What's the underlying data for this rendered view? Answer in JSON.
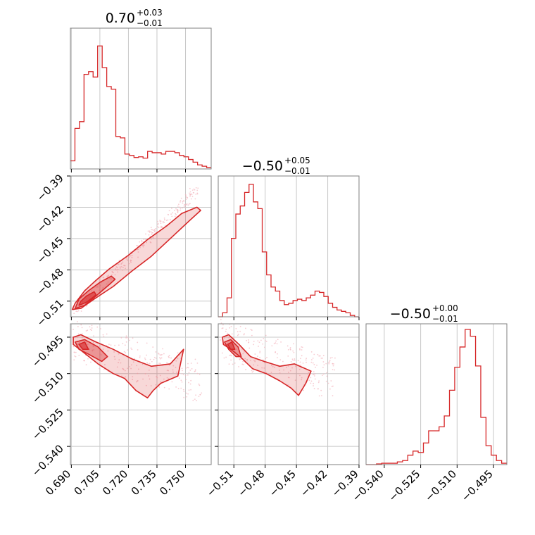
{
  "chart_data": {
    "type": "corner",
    "color": "#d62728",
    "grid": true,
    "panels": [
      {
        "id": "hist-p0",
        "type": "step-histogram",
        "title": {
          "value": "0.70",
          "plus": "+0.03",
          "minus": "−0.01"
        },
        "xlim": [
          0.6895,
          0.7635
        ],
        "counts": [
          0.06,
          0.3,
          0.35,
          0.7,
          0.72,
          0.68,
          0.91,
          0.75,
          0.61,
          0.59,
          0.24,
          0.23,
          0.11,
          0.1,
          0.085,
          0.09,
          0.08,
          0.13,
          0.12,
          0.12,
          0.11,
          0.13,
          0.13,
          0.12,
          0.1,
          0.09,
          0.07,
          0.05,
          0.03,
          0.02,
          0.01
        ]
      },
      {
        "id": "hist-p1",
        "type": "step-histogram",
        "title": {
          "value": "−0.50",
          "plus": "+0.05",
          "minus": "−0.01"
        },
        "xlim": [
          -0.525,
          -0.39
        ],
        "counts": [
          0.0,
          0.03,
          0.14,
          0.58,
          0.76,
          0.82,
          0.92,
          0.98,
          0.85,
          0.8,
          0.48,
          0.31,
          0.22,
          0.19,
          0.12,
          0.09,
          0.1,
          0.12,
          0.13,
          0.12,
          0.14,
          0.16,
          0.19,
          0.18,
          0.15,
          0.1,
          0.07,
          0.05,
          0.04,
          0.03,
          0.01,
          0.0
        ]
      },
      {
        "id": "hist-p2",
        "type": "step-histogram",
        "title": {
          "value": "−0.50",
          "plus": "+0.00",
          "minus": "−0.01"
        },
        "xlim": [
          -0.5475,
          -0.4895
        ],
        "counts": [
          0.0,
          0.0,
          0.005,
          0.01,
          0.01,
          0.01,
          0.02,
          0.03,
          0.07,
          0.1,
          0.09,
          0.16,
          0.25,
          0.25,
          0.28,
          0.36,
          0.55,
          0.72,
          0.87,
          1.0,
          0.95,
          0.73,
          0.35,
          0.14,
          0.07,
          0.03,
          0.01
        ]
      },
      {
        "id": "kde-p0-p1",
        "type": "contour",
        "xlim": [
          0.6895,
          0.7635
        ],
        "ylim": [
          -0.525,
          -0.39
        ]
      },
      {
        "id": "kde-p0-p2",
        "type": "contour",
        "xlim": [
          0.6895,
          0.7635
        ],
        "ylim": [
          -0.5475,
          -0.4895
        ]
      },
      {
        "id": "kde-p1-p2",
        "type": "contour",
        "xlim": [
          -0.525,
          -0.39
        ],
        "ylim": [
          -0.5475,
          -0.4895
        ]
      }
    ],
    "axes": {
      "p0": {
        "ticks": [
          0.69,
          0.705,
          0.72,
          0.735,
          0.75
        ],
        "labels": [
          "0.690",
          "0.705",
          "0.720",
          "0.735",
          "0.750"
        ]
      },
      "p1": {
        "ticks": [
          -0.51,
          -0.48,
          -0.45,
          -0.42,
          -0.39
        ],
        "labels": [
          "−0.51",
          "−0.48",
          "−0.45",
          "−0.42",
          "−0.39"
        ]
      },
      "p2": {
        "ticks": [
          -0.54,
          -0.525,
          -0.51,
          -0.495
        ],
        "labels": [
          "−0.540",
          "−0.525",
          "−0.510",
          "−0.495"
        ]
      },
      "p1_left": {
        "ticks": [
          -0.51,
          -0.48,
          -0.45,
          -0.42,
          -0.39
        ],
        "labels": [
          "−0.51",
          "−0.48",
          "−0.45",
          "−0.42",
          "−0.39"
        ]
      }
    }
  }
}
